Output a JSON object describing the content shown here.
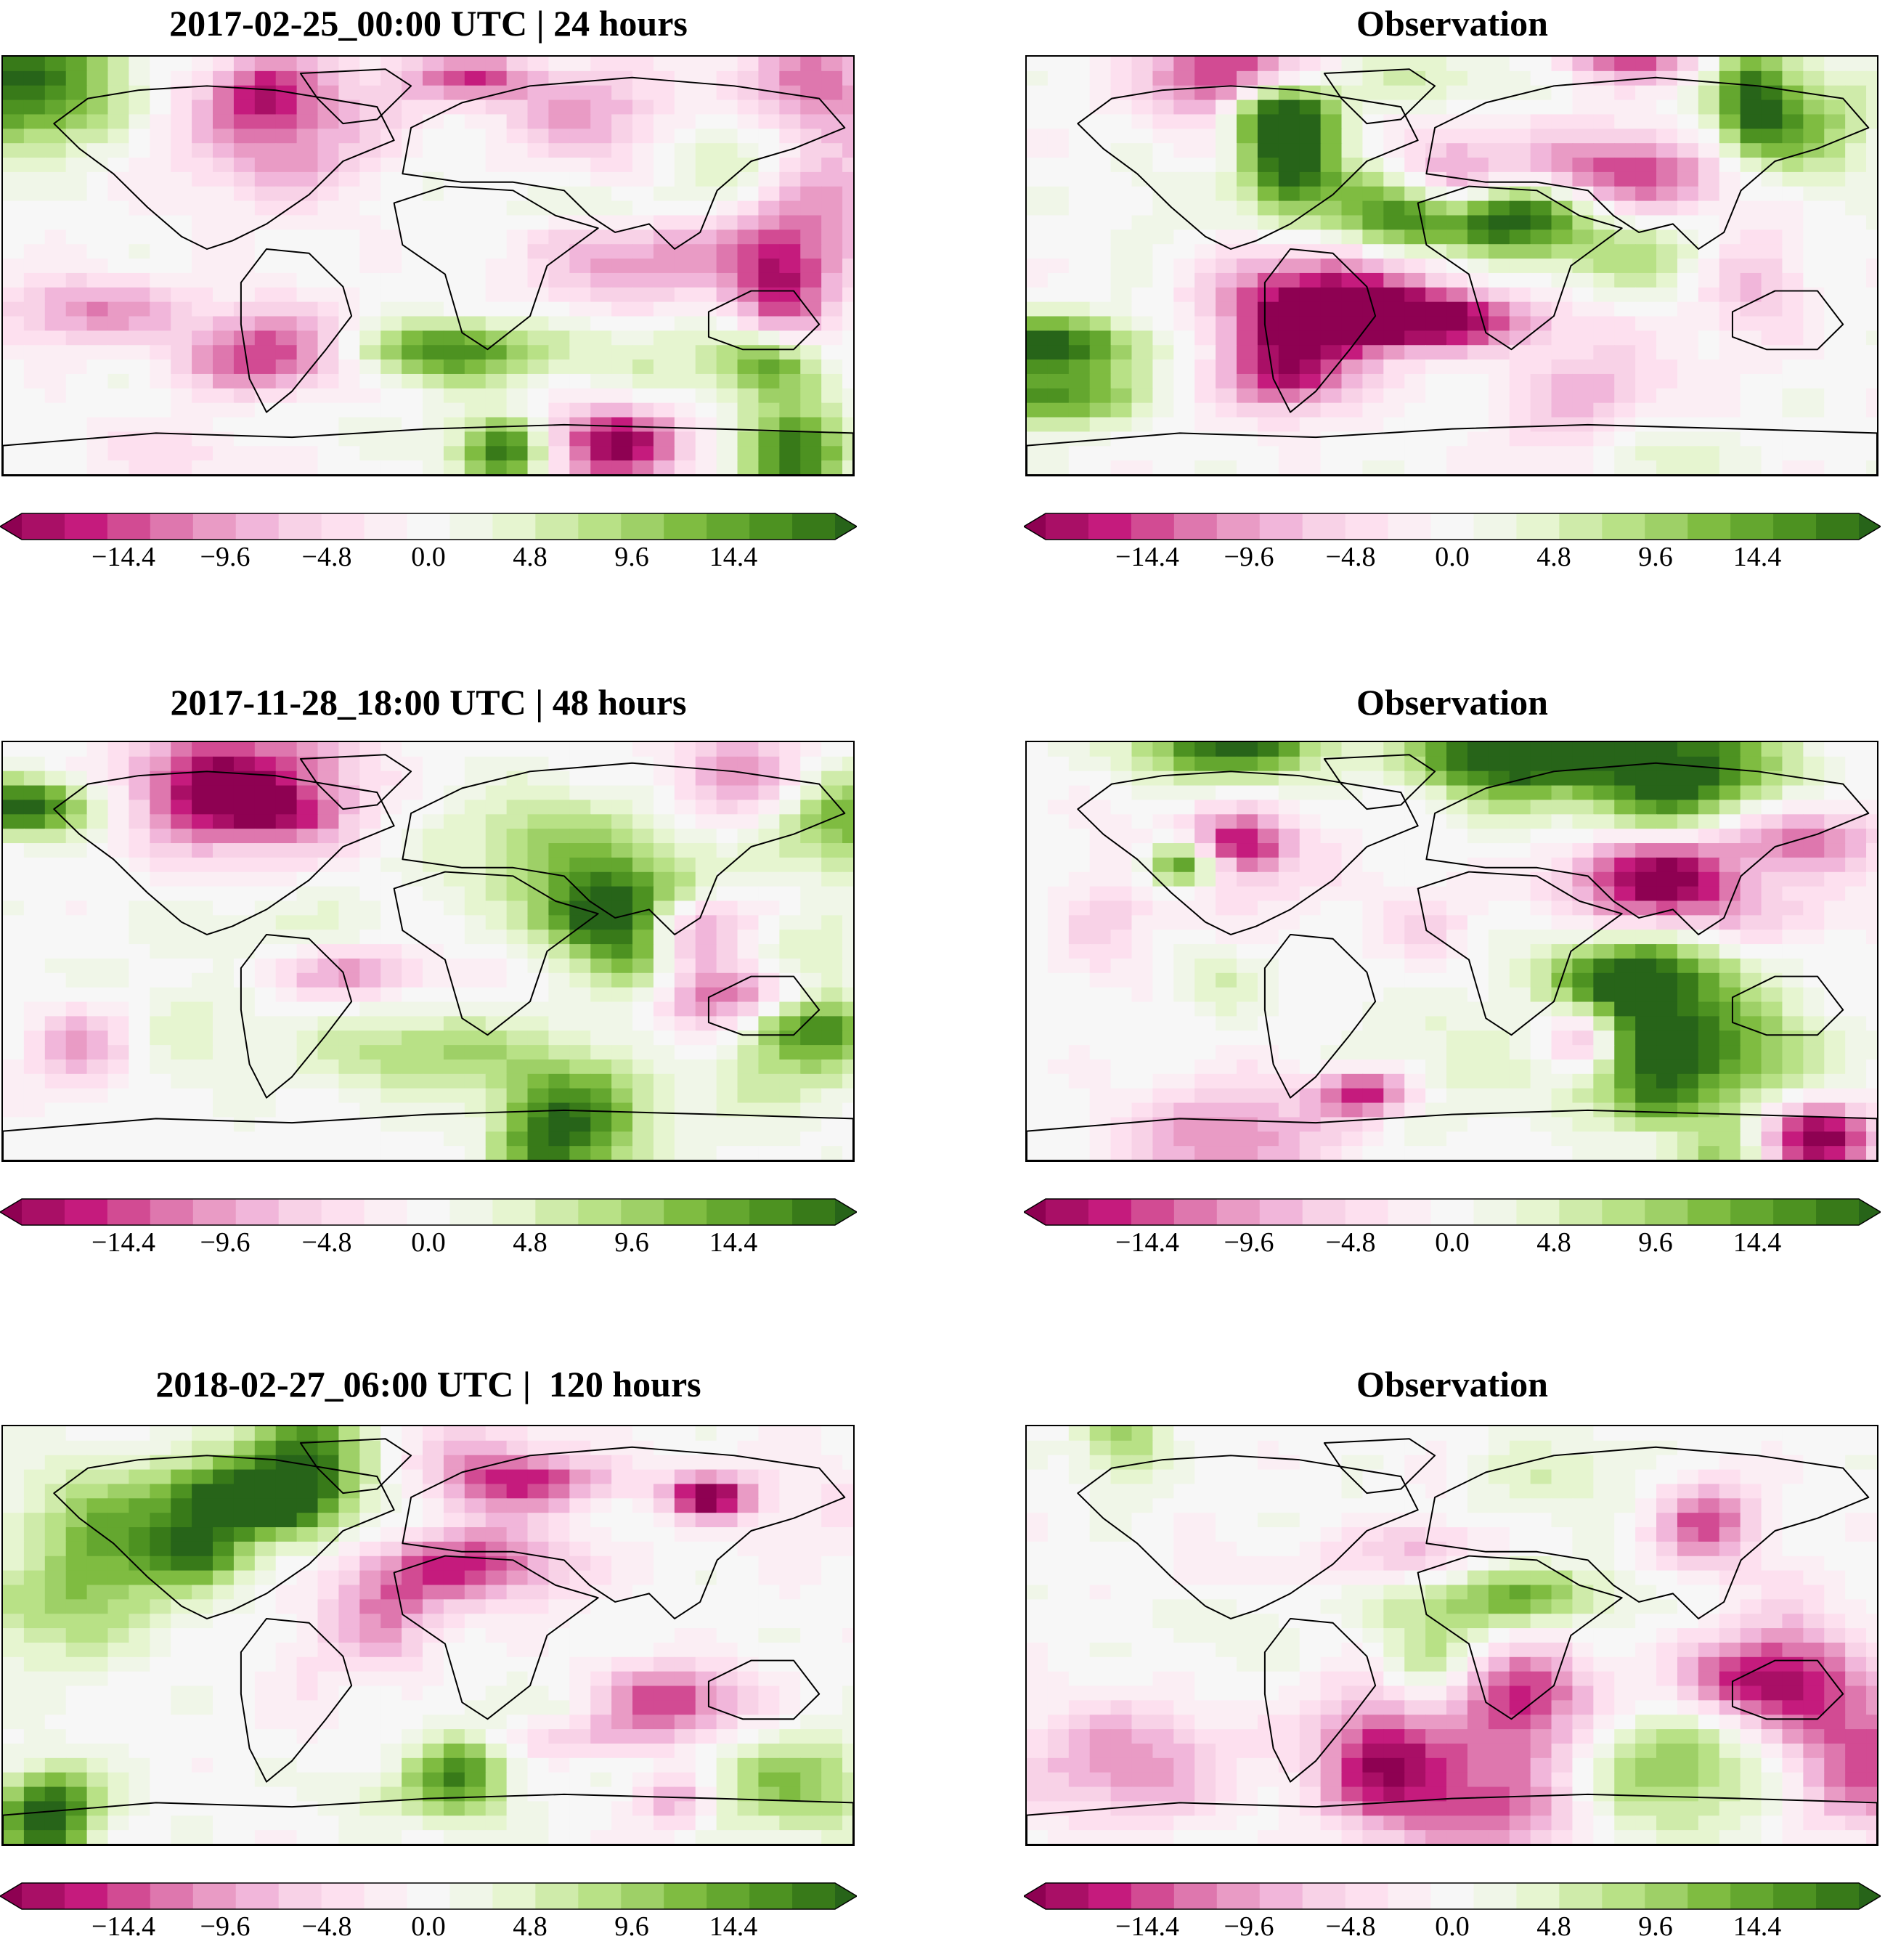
{
  "panels": [
    {
      "title": "2017-02-25_00:00 UTC | 24 hours",
      "variant": 0
    },
    {
      "title": "Observation",
      "variant": 1
    },
    {
      "title": "2017-11-28_18:00 UTC | 48 hours",
      "variant": 2
    },
    {
      "title": "Observation",
      "variant": 3
    },
    {
      "title": "2018-02-27_06:00 UTC |  120 hours",
      "variant": 4
    },
    {
      "title": "Observation",
      "variant": 5
    }
  ],
  "colorbar": {
    "min": -19.2,
    "max": 19.2,
    "extend": "both",
    "ticks": [
      "−14.4",
      "−9.6",
      "−4.8",
      "0.0",
      "4.8",
      "9.6",
      "14.4"
    ],
    "tick_values": [
      -14.4,
      -9.6,
      -4.8,
      0.0,
      4.8,
      9.6,
      14.4
    ],
    "colors": [
      "#8e0152",
      "#a90f66",
      "#c51b7d",
      "#d24b93",
      "#de77ae",
      "#e99bc5",
      "#f1b6da",
      "#f8d2e7",
      "#fde0ef",
      "#fbeef4",
      "#f7f7f7",
      "#f0f6e8",
      "#e6f5d0",
      "#cfebaa",
      "#b8e186",
      "#9ed067",
      "#7fbc41",
      "#64a72f",
      "#4d9221",
      "#387a19",
      "#276419"
    ]
  },
  "colors": {
    "negative": "#c51b7d",
    "positive": "#4d9221",
    "neutral": "#f7f7f7",
    "coastline": "#000000"
  }
}
